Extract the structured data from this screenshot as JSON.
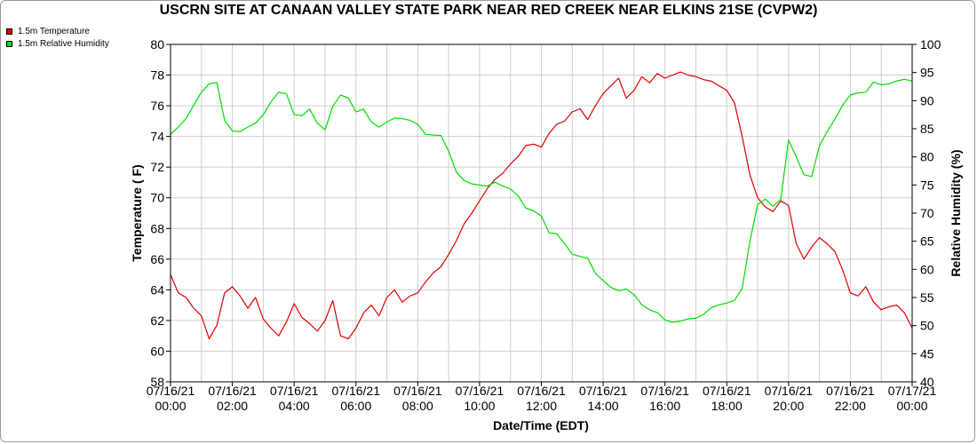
{
  "chart_data": {
    "type": "line",
    "title": "USCRN SITE AT CANAAN VALLEY STATE PARK NEAR RED CREEK NEAR ELKINS 21SE (CVPW2)",
    "xlabel": "Date/Time (EDT)",
    "ylabel": "Temperature ( F)",
    "y2label": "Relative Humidity (%)",
    "ylim": [
      58,
      80
    ],
    "y2lim": [
      40,
      100
    ],
    "yticks": [
      58,
      60,
      62,
      64,
      66,
      68,
      70,
      72,
      74,
      76,
      78,
      80
    ],
    "y2ticks": [
      40,
      45,
      50,
      55,
      60,
      65,
      70,
      75,
      80,
      85,
      90,
      95,
      100
    ],
    "xlim": [
      0,
      24
    ],
    "xticks": [
      {
        "date": "07/16/21",
        "time": "00:00"
      },
      {
        "date": "07/16/21",
        "time": "02:00"
      },
      {
        "date": "07/16/21",
        "time": "04:00"
      },
      {
        "date": "07/16/21",
        "time": "06:00"
      },
      {
        "date": "07/16/21",
        "time": "08:00"
      },
      {
        "date": "07/16/21",
        "time": "10:00"
      },
      {
        "date": "07/16/21",
        "time": "12:00"
      },
      {
        "date": "07/16/21",
        "time": "14:00"
      },
      {
        "date": "07/16/21",
        "time": "16:00"
      },
      {
        "date": "07/16/21",
        "time": "18:00"
      },
      {
        "date": "07/16/21",
        "time": "20:00"
      },
      {
        "date": "07/16/21",
        "time": "22:00"
      },
      {
        "date": "07/17/21",
        "time": "00:00"
      }
    ],
    "grid": true,
    "legend_position": "top-left",
    "series": [
      {
        "name": "1.5m Temperature",
        "color": "#e00000",
        "axis": "left",
        "x": [
          0,
          0.25,
          0.5,
          0.75,
          1,
          1.25,
          1.5,
          1.75,
          2,
          2.25,
          2.5,
          2.75,
          3,
          3.25,
          3.5,
          3.75,
          4,
          4.25,
          4.5,
          4.75,
          5,
          5.25,
          5.5,
          5.75,
          6,
          6.25,
          6.5,
          6.75,
          7,
          7.25,
          7.5,
          7.75,
          8,
          8.25,
          8.5,
          8.75,
          9,
          9.25,
          9.5,
          9.75,
          10,
          10.25,
          10.5,
          10.75,
          11,
          11.25,
          11.5,
          11.75,
          12,
          12.25,
          12.5,
          12.75,
          13,
          13.25,
          13.5,
          13.75,
          14,
          14.25,
          14.5,
          14.75,
          15,
          15.25,
          15.5,
          15.75,
          16,
          16.25,
          16.5,
          16.75,
          17,
          17.25,
          17.5,
          17.75,
          18,
          18.25,
          18.5,
          18.75,
          19,
          19.25,
          19.5,
          19.75,
          20,
          20.25,
          20.5,
          20.75,
          21,
          21.25,
          21.5,
          21.75,
          22,
          22.25,
          22.5,
          22.75,
          23,
          23.25,
          23.5,
          23.75,
          24
        ],
        "values": [
          65.0,
          63.8,
          63.5,
          62.8,
          62.3,
          60.8,
          61.7,
          63.8,
          64.2,
          63.6,
          62.8,
          63.5,
          62.1,
          61.5,
          61.0,
          61.9,
          63.1,
          62.2,
          61.8,
          61.3,
          62.0,
          63.3,
          61.0,
          60.8,
          61.5,
          62.5,
          63.0,
          62.3,
          63.5,
          64.0,
          63.2,
          63.6,
          63.8,
          64.5,
          65.1,
          65.5,
          66.3,
          67.2,
          68.3,
          69.0,
          69.8,
          70.6,
          71.2,
          71.6,
          72.2,
          72.7,
          73.4,
          73.5,
          73.3,
          74.2,
          74.8,
          75.0,
          75.6,
          75.8,
          75.1,
          76.0,
          76.8,
          77.3,
          77.8,
          76.5,
          77.0,
          77.9,
          77.5,
          78.1,
          77.8,
          78.0,
          78.2,
          78.0,
          77.9,
          77.7,
          77.6,
          77.3,
          77.0,
          76.2,
          74.0,
          71.5,
          70.0,
          69.4,
          69.1,
          69.8,
          69.5,
          67.0,
          66.0,
          66.8,
          67.4,
          67.0,
          66.5,
          65.3,
          63.8,
          63.6,
          64.2,
          63.2,
          62.7,
          62.9,
          63.0,
          62.5,
          61.5
        ]
      },
      {
        "name": "1.5m Relative Humidity",
        "color": "#00dd00",
        "axis": "right",
        "x": [
          0,
          0.25,
          0.5,
          0.75,
          1,
          1.25,
          1.5,
          1.75,
          2,
          2.25,
          2.5,
          2.75,
          3,
          3.25,
          3.5,
          3.75,
          4,
          4.25,
          4.5,
          4.75,
          5,
          5.25,
          5.5,
          5.75,
          6,
          6.25,
          6.5,
          6.75,
          7,
          7.25,
          7.5,
          7.75,
          8,
          8.25,
          8.5,
          8.75,
          9,
          9.25,
          9.5,
          9.75,
          10,
          10.25,
          10.5,
          10.75,
          11,
          11.25,
          11.5,
          11.75,
          12,
          12.25,
          12.5,
          12.75,
          13,
          13.25,
          13.5,
          13.75,
          14,
          14.25,
          14.5,
          14.75,
          15,
          15.25,
          15.5,
          15.75,
          16,
          16.25,
          16.5,
          16.75,
          17,
          17.25,
          17.5,
          17.75,
          18,
          18.25,
          18.5,
          18.75,
          19,
          19.25,
          19.5,
          19.75,
          20,
          20.25,
          20.5,
          20.75,
          21,
          21.25,
          21.5,
          21.75,
          22,
          22.25,
          22.5,
          22.75,
          23,
          23.25,
          23.5,
          23.75,
          24
        ],
        "values": [
          84.0,
          85.3,
          86.8,
          89.2,
          91.5,
          93.0,
          93.2,
          86.5,
          84.6,
          84.5,
          85.3,
          86.0,
          87.5,
          89.8,
          91.5,
          91.2,
          87.5,
          87.3,
          88.5,
          86.0,
          84.8,
          89.0,
          91.0,
          90.5,
          88.0,
          88.5,
          86.2,
          85.3,
          86.2,
          86.9,
          86.8,
          86.5,
          85.8,
          84.0,
          83.9,
          83.8,
          81.0,
          77.3,
          75.8,
          75.2,
          75.0,
          74.8,
          75.5,
          74.8,
          74.3,
          73.1,
          70.9,
          70.4,
          69.5,
          66.5,
          66.3,
          64.6,
          62.7,
          62.3,
          62.0,
          59.3,
          58.0,
          56.8,
          56.2,
          56.5,
          55.5,
          53.7,
          52.8,
          52.3,
          51.0,
          50.6,
          50.8,
          51.2,
          51.3,
          52.0,
          53.2,
          53.7,
          54.0,
          54.5,
          56.6,
          65.0,
          71.5,
          72.5,
          71.2,
          72.5,
          83.0,
          80.0,
          76.8,
          76.5,
          82.0,
          84.5,
          86.7,
          89.2,
          91.0,
          91.4,
          91.5,
          93.3,
          92.8,
          93.0,
          93.5,
          93.8,
          93.5
        ]
      }
    ]
  }
}
